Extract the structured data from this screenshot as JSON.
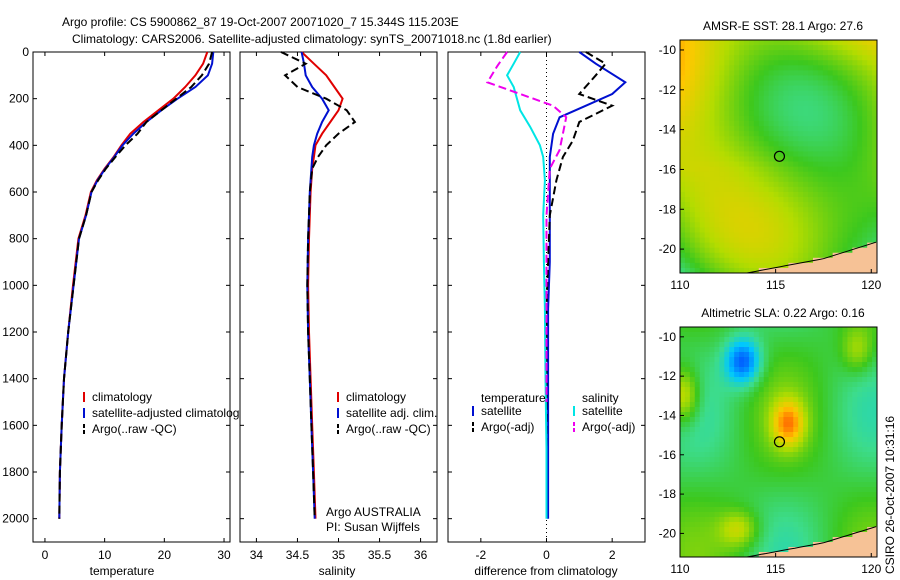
{
  "header": {
    "line1": "Argo profile: CS 5900862_87 19-Oct-2007 20071020_7 15.344S 115.203E",
    "line2": "Climatology: CARS2006. Satellite-adjusted climatology: synTS_20071018.nc (1.8d earlier)"
  },
  "side_label": "CSIRO 26-Oct-2007 10:31:16",
  "colors": {
    "clim": "#e00000",
    "sat": "#0010d0",
    "argo": "#000000",
    "sat_t": "#00e5e5",
    "argo_s": "#ee00ee"
  },
  "chart_data": [
    {
      "id": "temperature",
      "type": "line",
      "xlabel": "temperature",
      "ylabel": "",
      "xlim": [
        -2,
        31
      ],
      "ylim": [
        0,
        2100
      ],
      "y_inverted": true,
      "xticks": [
        0,
        10,
        20,
        30
      ],
      "yticks": [
        0,
        200,
        400,
        600,
        800,
        1000,
        1200,
        1400,
        1600,
        1800,
        2000
      ],
      "legend": [
        "climatology",
        "satellite-adjusted climatology",
        "Argo(..raw -QC)"
      ],
      "series": [
        {
          "name": "climatology",
          "color": "clim",
          "dash": false,
          "x": [
            27.2,
            26.5,
            25.2,
            23.5,
            21.5,
            19.0,
            16.5,
            14.3,
            12.8,
            11.5,
            10.0,
            8.7,
            7.7,
            6.8,
            5.6,
            4.7,
            3.9,
            3.2,
            2.8,
            2.5,
            2.4
          ],
          "y": [
            0,
            50,
            100,
            150,
            200,
            250,
            300,
            350,
            400,
            450,
            500,
            550,
            600,
            700,
            800,
            1000,
            1200,
            1400,
            1600,
            1800,
            2000
          ]
        },
        {
          "name": "satellite-adjusted climatology",
          "color": "sat",
          "dash": false,
          "x": [
            28.2,
            28.0,
            27.3,
            25.2,
            22.2,
            19.5,
            17.0,
            14.8,
            13.0,
            11.6,
            10.1,
            8.8,
            7.8,
            6.9,
            5.7,
            4.8,
            3.9,
            3.2,
            2.8,
            2.5,
            2.4
          ],
          "y": [
            0,
            50,
            100,
            150,
            200,
            250,
            300,
            350,
            400,
            450,
            500,
            550,
            600,
            700,
            800,
            1000,
            1200,
            1400,
            1600,
            1800,
            2000
          ]
        },
        {
          "name": "Argo(..raw -QC)",
          "color": "argo",
          "dash": true,
          "x": [
            28.0,
            27.5,
            26.3,
            24.5,
            22.0,
            19.5,
            17.0,
            15.5,
            13.5,
            11.8,
            10.2,
            8.9,
            7.8,
            6.9,
            5.7,
            4.8,
            3.9,
            3.2,
            2.8,
            2.5,
            2.4
          ],
          "y": [
            0,
            50,
            100,
            150,
            200,
            250,
            300,
            350,
            400,
            450,
            500,
            550,
            600,
            700,
            800,
            1000,
            1200,
            1400,
            1600,
            1800,
            2000
          ]
        }
      ]
    },
    {
      "id": "salinity",
      "type": "line",
      "xlabel": "salinity",
      "xlim": [
        33.8,
        36.2
      ],
      "ylim": [
        0,
        2100
      ],
      "y_inverted": true,
      "xticks": [
        34,
        34.5,
        35,
        35.5,
        36
      ],
      "legend": [
        "climatology",
        "satellite adj. clim.",
        "Argo(..raw -QC)"
      ],
      "annotation": [
        "Argo AUSTRALIA",
        "PI: Susan Wijffels"
      ],
      "series": [
        {
          "name": "climatology",
          "color": "clim",
          "dash": false,
          "x": [
            34.55,
            34.7,
            34.85,
            34.95,
            35.05,
            35.0,
            34.9,
            34.8,
            34.72,
            34.7,
            34.68,
            34.66,
            34.65,
            34.64,
            34.63,
            34.64,
            34.66,
            34.68,
            34.7,
            34.72
          ],
          "y": [
            0,
            50,
            100,
            150,
            200,
            250,
            300,
            350,
            400,
            450,
            500,
            600,
            700,
            800,
            1000,
            1200,
            1400,
            1600,
            1800,
            2000
          ]
        },
        {
          "name": "satellite adj. clim.",
          "color": "sat",
          "dash": false,
          "x": [
            34.55,
            34.58,
            34.6,
            34.68,
            34.8,
            34.88,
            34.8,
            34.74,
            34.7,
            34.68,
            34.67,
            34.65,
            34.64,
            34.63,
            34.62,
            34.63,
            34.65,
            34.67,
            34.69,
            34.71
          ],
          "y": [
            0,
            50,
            100,
            150,
            200,
            250,
            300,
            350,
            400,
            450,
            500,
            600,
            700,
            800,
            1000,
            1200,
            1400,
            1600,
            1800,
            2000
          ]
        },
        {
          "name": "Argo(..raw -QC)",
          "color": "argo",
          "dash": true,
          "x": [
            34.3,
            34.6,
            34.35,
            34.5,
            34.85,
            35.1,
            35.2,
            35.0,
            34.85,
            34.75,
            34.68,
            34.65,
            34.64,
            34.63,
            34.62,
            34.63,
            34.65,
            34.67,
            34.69,
            34.71
          ],
          "y": [
            0,
            50,
            100,
            150,
            200,
            250,
            300,
            350,
            400,
            450,
            500,
            600,
            700,
            800,
            1000,
            1200,
            1400,
            1600,
            1800,
            2000
          ]
        }
      ]
    },
    {
      "id": "difference",
      "type": "line",
      "xlabel": "difference from climatology",
      "xlim": [
        -3.0,
        3.0
      ],
      "ylim": [
        0,
        2100
      ],
      "y_inverted": true,
      "xticks": [
        -2,
        0,
        2
      ],
      "legend_left_title": "temperature",
      "legend_right_title": "salinity",
      "legend": [
        "satellite",
        "Argo(-adj)",
        "satellite",
        "Argo(-adj)"
      ],
      "series": [
        {
          "name": "temperature satellite",
          "color": "sat",
          "dash": false,
          "x": [
            1.0,
            1.5,
            2.4,
            2.0,
            1.2,
            0.4,
            0.2,
            0.1,
            0.1,
            0.1,
            0.1,
            0.05,
            0.05,
            0.05,
            0.05,
            0.05
          ],
          "y": [
            0,
            50,
            130,
            180,
            230,
            280,
            350,
            450,
            550,
            700,
            900,
            1100,
            1300,
            1500,
            1800,
            2000
          ]
        },
        {
          "name": "temperature Argo(-adj)",
          "color": "argo",
          "dash": true,
          "x": [
            1.2,
            1.8,
            1.5,
            1.0,
            2.0,
            1.0,
            0.8,
            0.5,
            0.3,
            0.1,
            0.05,
            0.0,
            0.0,
            0.0,
            0.0,
            0.0
          ],
          "y": [
            0,
            50,
            100,
            180,
            230,
            300,
            380,
            450,
            550,
            700,
            900,
            1100,
            1300,
            1500,
            1800,
            2000
          ]
        },
        {
          "name": "salinity satellite",
          "color": "sat_t",
          "dash": false,
          "x": [
            -0.8,
            -1.0,
            -1.2,
            -1.0,
            -0.8,
            -0.5,
            -0.2,
            -0.1,
            -0.05,
            -0.1,
            -0.08,
            -0.05,
            -0.03,
            0.0,
            0.0
          ],
          "y": [
            0,
            50,
            100,
            150,
            250,
            320,
            400,
            450,
            550,
            700,
            900,
            1100,
            1400,
            1700,
            2000
          ]
        },
        {
          "name": "salinity Argo(-adj)",
          "color": "argo_s",
          "dash": true,
          "x": [
            -1.2,
            -1.5,
            -1.8,
            -0.8,
            0.2,
            0.6,
            0.5,
            0.4,
            0.1,
            0.0,
            0.0,
            0.0
          ],
          "y": [
            0,
            60,
            130,
            180,
            230,
            280,
            350,
            420,
            500,
            700,
            1000,
            1500
          ]
        }
      ]
    },
    {
      "id": "amsr-e-sst",
      "type": "heatmap",
      "title": "AMSR-E SST: 28.1 Argo: 27.6",
      "xlim": [
        110,
        120.3
      ],
      "ylim": [
        -21.2,
        -9.5
      ],
      "xticks": [
        110,
        115,
        120
      ],
      "yticks": [
        -10,
        -12,
        -14,
        -16,
        -18,
        -20
      ],
      "argo_position": [
        115.2,
        -15.34
      ]
    },
    {
      "id": "altimetric-sla",
      "type": "heatmap",
      "title": "Altimetric SLA: 0.22 Argo: 0.16",
      "xlim": [
        110,
        120.3
      ],
      "ylim": [
        -21.2,
        -9.5
      ],
      "xticks": [
        110,
        115,
        120
      ],
      "yticks": [
        -10,
        -12,
        -14,
        -16,
        -18,
        -20
      ],
      "argo_position": [
        115.2,
        -15.34
      ]
    }
  ]
}
